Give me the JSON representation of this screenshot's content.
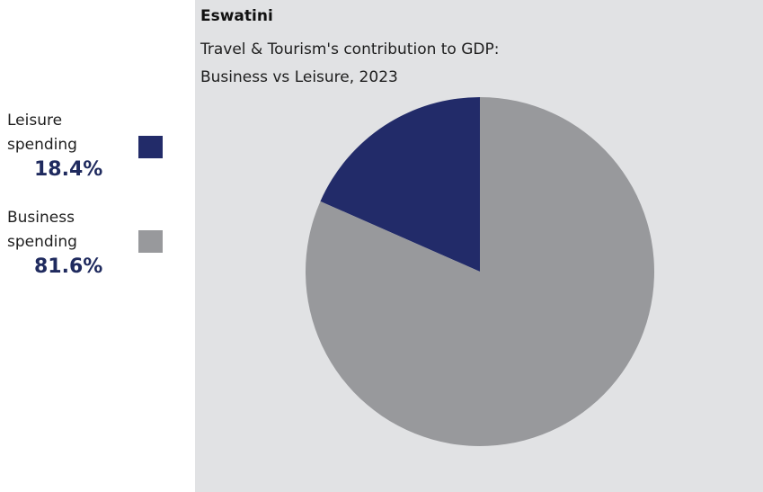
{
  "chart_data": {
    "type": "pie",
    "title": "Eswatini",
    "subtitle_lines": [
      "Travel & Tourism's contribution to GDP:",
      "Business vs Leisure, 2023"
    ],
    "slices": [
      {
        "label_lines": [
          "Leisure",
          "spending"
        ],
        "value": 18.4,
        "value_label": "18.4%",
        "color": "#222b69"
      },
      {
        "label_lines": [
          "Business",
          "spending"
        ],
        "value": 81.6,
        "value_label": "81.6%",
        "color": "#98999c"
      }
    ]
  },
  "colors": {
    "panel_background": "#e1e2e4"
  }
}
